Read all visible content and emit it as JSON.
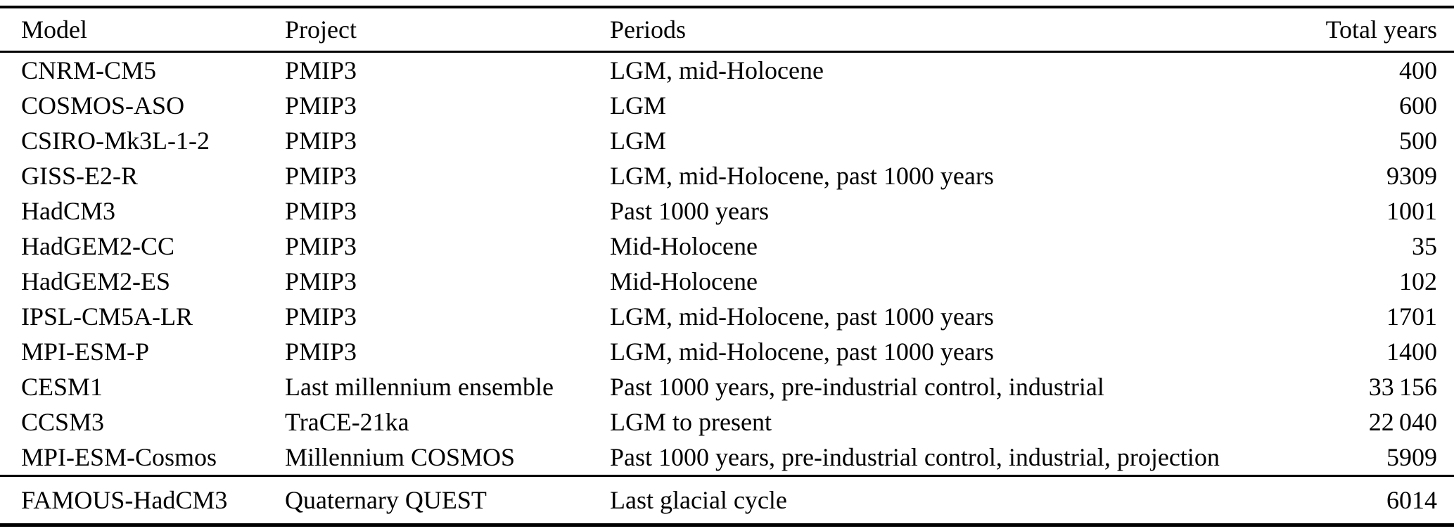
{
  "table": {
    "columns": [
      {
        "key": "model",
        "label": "Model",
        "align": "left"
      },
      {
        "key": "project",
        "label": "Project",
        "align": "left"
      },
      {
        "key": "periods",
        "label": "Periods",
        "align": "left"
      },
      {
        "key": "total_years",
        "label": "Total years",
        "align": "right"
      }
    ],
    "rows": [
      {
        "model": "CNRM-CM5",
        "project": "PMIP3",
        "periods": "LGM, mid-Holocene",
        "total_years": "400"
      },
      {
        "model": "COSMOS-ASO",
        "project": "PMIP3",
        "periods": "LGM",
        "total_years": "600"
      },
      {
        "model": "CSIRO-Mk3L-1-2",
        "project": "PMIP3",
        "periods": "LGM",
        "total_years": "500"
      },
      {
        "model": "GISS-E2-R",
        "project": "PMIP3",
        "periods": "LGM, mid-Holocene, past 1000 years",
        "total_years": "9309"
      },
      {
        "model": "HadCM3",
        "project": "PMIP3",
        "periods": "Past 1000 years",
        "total_years": "1001"
      },
      {
        "model": "HadGEM2-CC",
        "project": "PMIP3",
        "periods": "Mid-Holocene",
        "total_years": "35"
      },
      {
        "model": "HadGEM2-ES",
        "project": "PMIP3",
        "periods": "Mid-Holocene",
        "total_years": "102"
      },
      {
        "model": "IPSL-CM5A-LR",
        "project": "PMIP3",
        "periods": "LGM, mid-Holocene, past 1000 years",
        "total_years": "1701"
      },
      {
        "model": "MPI-ESM-P",
        "project": "PMIP3",
        "periods": "LGM, mid-Holocene, past 1000 years",
        "total_years": "1400"
      },
      {
        "model": "CESM1",
        "project": "Last millennium ensemble",
        "periods": "Past 1000 years, pre-industrial control, industrial",
        "total_years": "33 156"
      },
      {
        "model": "CCSM3",
        "project": "TraCE-21ka",
        "periods": "LGM to present",
        "total_years": "22 040"
      },
      {
        "model": "MPI-ESM-Cosmos",
        "project": "Millennium COSMOS",
        "periods": "Past 1000 years, pre-industrial control, industrial, projection",
        "total_years": "5909"
      }
    ],
    "footer_rows": [
      {
        "model": "FAMOUS-HadCM3",
        "project": "Quaternary QUEST",
        "periods": "Last glacial cycle",
        "total_years": "6014"
      }
    ]
  },
  "chart_data": {
    "type": "table",
    "title": "",
    "columns": [
      "Model",
      "Project",
      "Periods",
      "Total years"
    ],
    "rows": [
      [
        "CNRM-CM5",
        "PMIP3",
        "LGM, mid-Holocene",
        400
      ],
      [
        "COSMOS-ASO",
        "PMIP3",
        "LGM",
        600
      ],
      [
        "CSIRO-Mk3L-1-2",
        "PMIP3",
        "LGM",
        500
      ],
      [
        "GISS-E2-R",
        "PMIP3",
        "LGM, mid-Holocene, past 1000 years",
        9309
      ],
      [
        "HadCM3",
        "PMIP3",
        "Past 1000 years",
        1001
      ],
      [
        "HadGEM2-CC",
        "PMIP3",
        "Mid-Holocene",
        35
      ],
      [
        "HadGEM2-ES",
        "PMIP3",
        "Mid-Holocene",
        102
      ],
      [
        "IPSL-CM5A-LR",
        "PMIP3",
        "LGM, mid-Holocene, past 1000 years",
        1701
      ],
      [
        "MPI-ESM-P",
        "PMIP3",
        "LGM, mid-Holocene, past 1000 years",
        1400
      ],
      [
        "CESM1",
        "Last millennium ensemble",
        "Past 1000 years, pre-industrial control, industrial",
        33156
      ],
      [
        "CCSM3",
        "TraCE-21ka",
        "LGM to present",
        22040
      ],
      [
        "MPI-ESM-Cosmos",
        "Millennium COSMOS",
        "Past 1000 years, pre-industrial control, industrial, projection",
        5909
      ],
      [
        "FAMOUS-HadCM3",
        "Quaternary QUEST",
        "Last glacial cycle",
        6014
      ]
    ]
  },
  "colors": {
    "text": "#000000",
    "background": "#ffffff",
    "rule": "#000000"
  }
}
